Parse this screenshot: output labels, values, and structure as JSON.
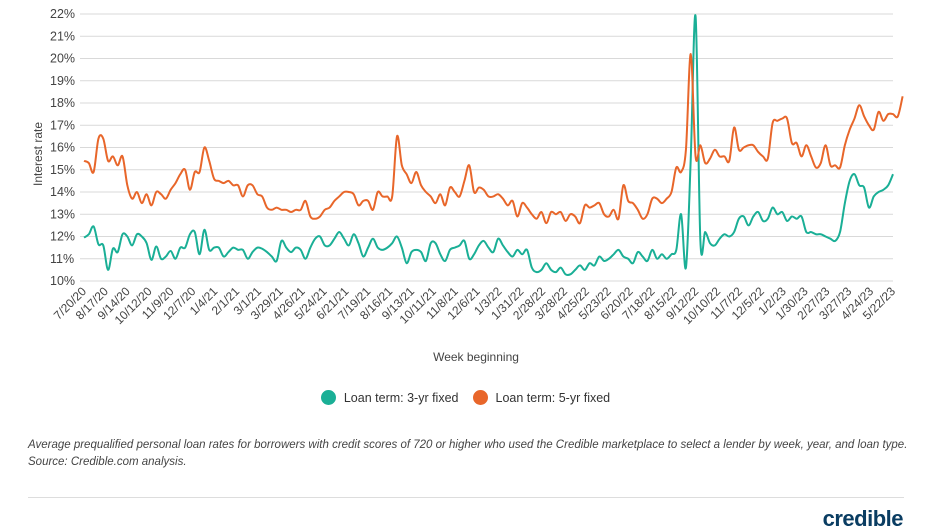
{
  "chart_data": {
    "type": "line",
    "xlabel": "Week beginning",
    "ylabel": "Interest rate",
    "ylim": [
      10,
      22
    ],
    "y_ticks": [
      "10%",
      "11%",
      "12%",
      "13%",
      "14%",
      "15%",
      "16%",
      "17%",
      "18%",
      "19%",
      "20%",
      "21%",
      "22%"
    ],
    "x_ticks": [
      "7/20/20",
      "8/17/20",
      "9/14/20",
      "10/12/20",
      "11/9/20",
      "12/7/20",
      "1/4/21",
      "2/1/21",
      "3/1/21",
      "3/29/21",
      "4/26/21",
      "5/24/21",
      "6/21/21",
      "7/19/21",
      "8/16/21",
      "9/13/21",
      "10/11/21",
      "11/8/21",
      "12/6/21",
      "1/3/22",
      "1/31/22",
      "2/28/22",
      "3/28/22",
      "4/25/22",
      "5/23/22",
      "6/20/22",
      "7/18/22",
      "8/15/22",
      "9/12/22",
      "10/10/22",
      "11/7/22",
      "12/5/22",
      "1/2/23",
      "1/30/23",
      "2/27/23",
      "3/27/23",
      "4/24/23",
      "5/22/23"
    ],
    "grid": "horizontal",
    "legend_position": "bottom",
    "series": [
      {
        "name": "Loan term: 3-yr fixed",
        "color": "#1aaf96",
        "values": [
          11.95,
          12.1,
          12.45,
          11.65,
          11.6,
          10.5,
          11.45,
          11.3,
          12.1,
          12.0,
          11.6,
          12.1,
          12.0,
          11.7,
          10.95,
          11.55,
          11.0,
          11.1,
          11.35,
          11.0,
          11.5,
          11.5,
          12.1,
          12.2,
          11.2,
          12.3,
          11.4,
          11.5,
          11.5,
          11.1,
          11.3,
          11.5,
          11.4,
          11.4,
          11.0,
          11.3,
          11.5,
          11.45,
          11.3,
          11.1,
          10.9,
          11.8,
          11.5,
          11.3,
          11.5,
          11.4,
          11.0,
          11.5,
          11.9,
          12.0,
          11.6,
          11.6,
          11.9,
          12.2,
          11.9,
          11.6,
          12.1,
          11.7,
          11.1,
          11.5,
          11.9,
          11.5,
          11.4,
          11.5,
          11.7,
          12.0,
          11.5,
          10.8,
          11.3,
          11.4,
          11.3,
          10.9,
          11.7,
          11.7,
          11.2,
          10.9,
          11.4,
          11.5,
          11.6,
          11.8,
          11.0,
          11.2,
          11.6,
          11.8,
          11.5,
          11.3,
          11.9,
          11.6,
          11.3,
          11.1,
          11.4,
          11.2,
          11.4,
          10.6,
          10.4,
          10.5,
          10.8,
          10.5,
          10.4,
          10.6,
          10.3,
          10.3,
          10.5,
          10.7,
          10.5,
          10.8,
          10.7,
          11.1,
          10.9,
          11.0,
          11.2,
          11.4,
          11.1,
          11.0,
          10.8,
          11.3,
          11.1,
          10.9,
          11.4,
          11.0,
          11.2,
          11.0,
          11.2,
          11.4,
          13.0,
          10.6,
          15.5,
          21.9,
          11.8,
          12.2,
          11.7,
          11.6,
          11.9,
          12.1,
          12.0,
          12.2,
          12.8,
          12.9,
          12.5,
          12.9,
          13.1,
          12.7,
          12.8,
          13.3,
          13.0,
          13.1,
          12.7,
          12.9,
          12.8,
          12.9,
          12.2,
          12.2,
          12.1,
          12.1,
          12.0,
          11.9,
          11.8,
          12.2,
          13.5,
          14.5,
          14.8,
          14.3,
          14.2,
          13.3,
          13.8,
          14.0,
          14.1,
          14.3,
          14.8
        ]
      },
      {
        "name": "Loan term: 5-yr fixed",
        "color": "#e8662a",
        "values": [
          15.4,
          15.3,
          14.9,
          16.4,
          16.4,
          15.4,
          15.6,
          15.2,
          15.6,
          14.3,
          13.7,
          14.0,
          13.5,
          13.9,
          13.4,
          14.0,
          13.9,
          13.7,
          14.1,
          14.4,
          14.8,
          15.0,
          14.1,
          14.9,
          14.9,
          16.0,
          15.4,
          14.6,
          14.5,
          14.4,
          14.5,
          14.3,
          14.3,
          13.8,
          14.3,
          14.3,
          13.9,
          13.8,
          13.3,
          13.2,
          13.3,
          13.2,
          13.2,
          13.1,
          13.2,
          13.2,
          13.6,
          12.9,
          12.8,
          12.9,
          13.2,
          13.3,
          13.6,
          13.8,
          14.0,
          14.0,
          13.9,
          13.4,
          13.6,
          13.6,
          13.2,
          14.0,
          13.8,
          13.8,
          13.8,
          16.5,
          15.2,
          14.8,
          14.4,
          14.9,
          14.3,
          14.0,
          13.8,
          13.5,
          13.9,
          13.4,
          14.2,
          14.0,
          13.8,
          14.5,
          15.2,
          14.0,
          14.2,
          14.1,
          13.8,
          13.8,
          13.9,
          13.7,
          13.4,
          13.6,
          12.9,
          13.5,
          13.3,
          13.0,
          12.8,
          13.1,
          12.6,
          13.1,
          13.0,
          13.1,
          12.7,
          13.0,
          12.9,
          12.6,
          13.4,
          13.3,
          13.4,
          13.5,
          13.0,
          12.9,
          13.2,
          12.8,
          14.3,
          13.6,
          13.5,
          13.2,
          12.8,
          13.0,
          13.7,
          13.7,
          13.5,
          13.7,
          14.0,
          15.1,
          14.9,
          15.9,
          20.2,
          15.6,
          16.1,
          15.3,
          15.5,
          15.9,
          15.6,
          15.6,
          15.4,
          16.9,
          15.9,
          16.0,
          16.1,
          16.1,
          15.8,
          15.6,
          15.5,
          17.1,
          17.2,
          17.3,
          17.3,
          16.2,
          16.2,
          15.6,
          16.1,
          15.6,
          15.1,
          15.3,
          16.1,
          15.2,
          15.2,
          15.1,
          16.1,
          16.8,
          17.3,
          17.9,
          17.4,
          17.0,
          16.8,
          17.6,
          17.2,
          17.5,
          17.5,
          17.4,
          18.3
        ]
      }
    ]
  },
  "caption": "Average prequalified personal loan rates for borrowers with credit scores of 720 or higher who used the Credible marketplace to select a lender by week, year, and loan type. Source: Credible.com analysis.",
  "logo": "credible"
}
